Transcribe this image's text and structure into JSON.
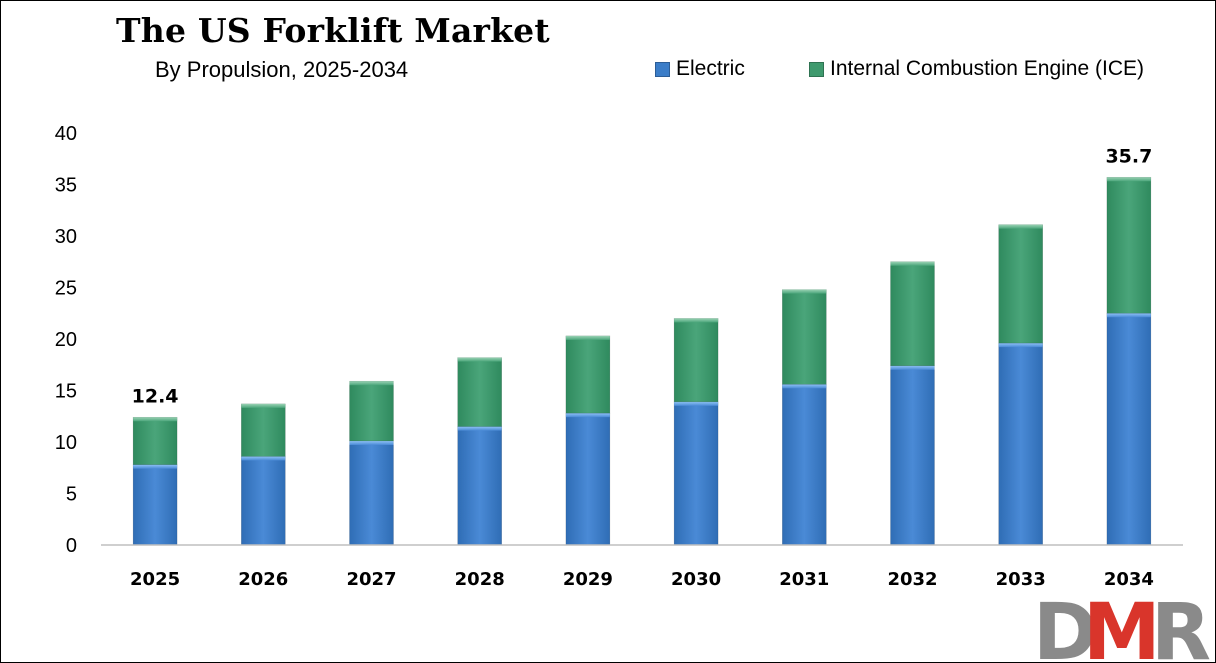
{
  "title": "The US Forklift Market",
  "subtitle": "By Propulsion, 2025-2034",
  "legend": [
    {
      "label": "Electric",
      "color": "#3b7dc8"
    },
    {
      "label": "Internal Combustion Engine (ICE)",
      "color": "#3f9a6e"
    }
  ],
  "logo_text": "DMR",
  "chart_data": {
    "type": "bar",
    "stacked": true,
    "categories": [
      "2025",
      "2026",
      "2027",
      "2028",
      "2029",
      "2030",
      "2031",
      "2032",
      "2033",
      "2034"
    ],
    "series": [
      {
        "name": "Electric",
        "color": "#3b7dc8",
        "values": [
          7.8,
          8.6,
          10.1,
          11.5,
          12.8,
          13.9,
          15.6,
          17.4,
          19.6,
          22.5
        ]
      },
      {
        "name": "Internal Combustion Engine (ICE)",
        "color": "#3f9a6e",
        "values": [
          4.6,
          5.1,
          5.8,
          6.7,
          7.5,
          8.1,
          9.2,
          10.1,
          11.5,
          13.2
        ]
      }
    ],
    "data_labels": [
      {
        "category": "2025",
        "text": "12.4"
      },
      {
        "category": "2034",
        "text": "35.7"
      }
    ],
    "yticks": [
      "0",
      "5",
      "10",
      "15",
      "20",
      "25",
      "30",
      "35",
      "40"
    ],
    "ylim": [
      0,
      40
    ],
    "xlabel": "",
    "ylabel": "",
    "grid": false,
    "legend_position": "top-right"
  }
}
